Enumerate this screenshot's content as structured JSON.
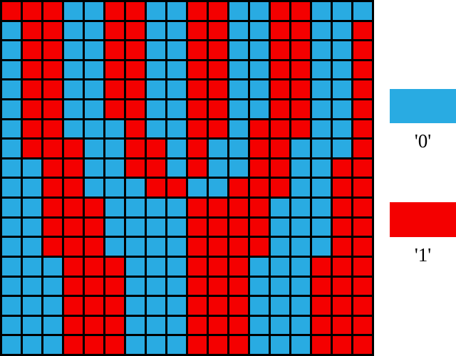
{
  "chart_data": {
    "type": "heatmap",
    "title": "",
    "rows": 18,
    "cols": 18,
    "matrix": [
      "111001100110011000",
      "011001100110011001",
      "011001100110011001",
      "011001100110011001",
      "011001100110011001",
      "011001100110011001",
      "011000100110111001",
      "011100110100110001",
      "001100110100110011",
      "001100011001110011",
      "001110000111100011",
      "001110000111100011",
      "001110000111100011",
      "000111000111000111",
      "000111000111000111",
      "000111000111000111",
      "000111000111000111",
      "000111000111000111"
    ],
    "cell_colors": {
      "0": "#29abe2",
      "1": "#f40000"
    },
    "grid_line_color": "#000000",
    "background_color": "#ffffff",
    "legend_position": "right",
    "legend": [
      {
        "label": "'0'",
        "value": "0",
        "color": "#29abe2"
      },
      {
        "label": "'1'",
        "value": "1",
        "color": "#f40000"
      }
    ]
  }
}
